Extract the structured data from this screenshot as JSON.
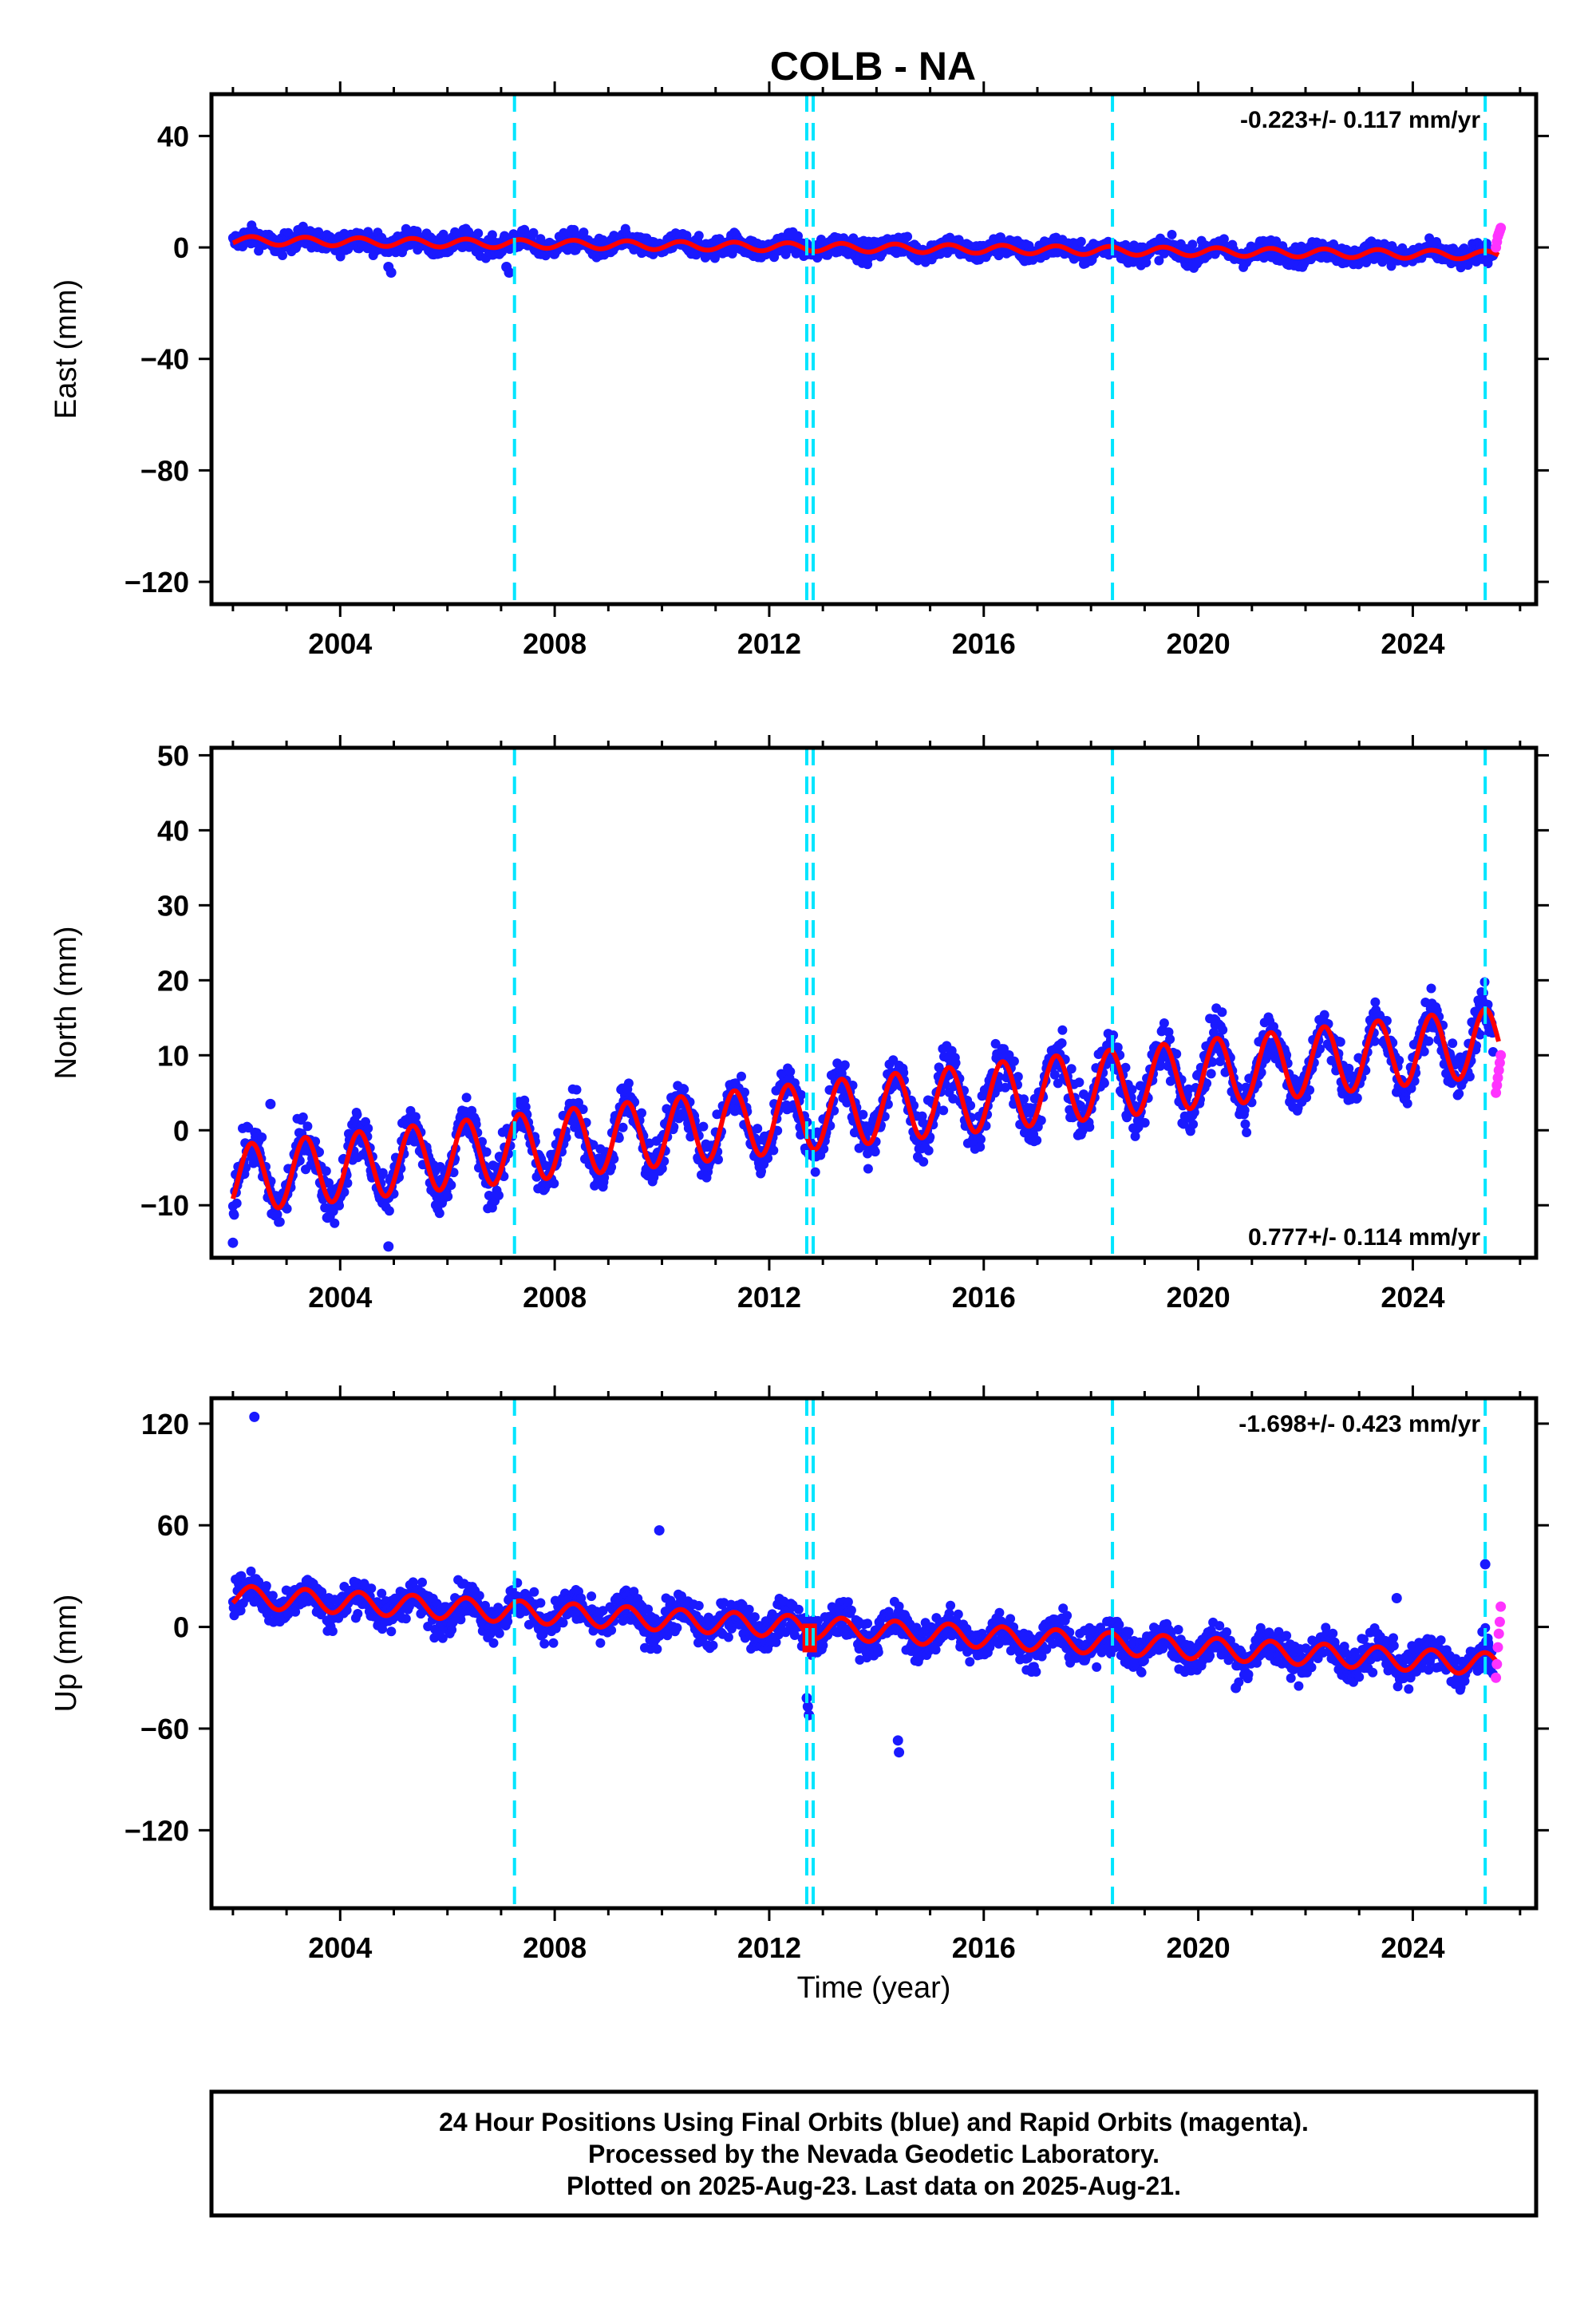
{
  "title": "COLB - NA",
  "xlabel": "Time (year)",
  "colors": {
    "final_orbits": "#1a1aff",
    "rapid_orbits": "#ff33ff",
    "model_fit": "#ff0000",
    "event_lines": "#00e5ff",
    "frame": "#000000"
  },
  "footer": {
    "line1": "24 Hour Positions Using Final Orbits (blue) and Rapid Orbits (magenta).",
    "line2": "Processed by the Nevada Geodetic Laboratory.",
    "line3": "Plotted on 2025-Aug-23. Last data on 2025-Aug-21."
  },
  "chart_data": [
    {
      "type": "scatter",
      "component": "East",
      "ylabel": "East (mm)",
      "rate_label": "-0.223+/- 0.117 mm/yr",
      "rate_label_position": "top-right",
      "xlim": [
        2001.6,
        2026.3
      ],
      "ylim": [
        -128,
        55
      ],
      "xticks": [
        2004,
        2008,
        2012,
        2016,
        2020,
        2024
      ],
      "yticks": [
        40,
        0,
        -40,
        -80,
        -120
      ],
      "event_lines_x": [
        2007.25,
        2012.7,
        2012.82,
        2018.4,
        2025.35
      ],
      "series": [
        {
          "label": "Final Orbits (blue)",
          "x_start": 2002.0,
          "x_end": 2025.5,
          "start_value": 2.5,
          "rate": -0.223,
          "annual_amplitude": 1.5,
          "scatter": 1.8
        },
        {
          "label": "Rapid Orbits (magenta)",
          "x_start": 2025.55,
          "x_end": 2025.64,
          "values": [
            0,
            2,
            4,
            5,
            6,
            7
          ]
        }
      ],
      "outliers": [
        [
          2004.9,
          -7
        ],
        [
          2004.95,
          -9
        ],
        [
          2007.1,
          -7
        ],
        [
          2007.15,
          -9
        ]
      ]
    },
    {
      "type": "scatter",
      "component": "North",
      "ylabel": "North (mm)",
      "rate_label": "0.777+/- 0.114 mm/yr",
      "rate_label_position": "bottom-right",
      "xlim": [
        2001.6,
        2026.3
      ],
      "ylim": [
        -17,
        51
      ],
      "xticks": [
        2004,
        2008,
        2012,
        2016,
        2020,
        2024
      ],
      "yticks": [
        50,
        40,
        30,
        20,
        10,
        0,
        -10
      ],
      "event_lines_x": [
        2007.25,
        2012.7,
        2012.82,
        2018.4,
        2025.35
      ],
      "series": [
        {
          "label": "Final Orbits (blue)",
          "x_start": 2002.0,
          "x_end": 2025.5,
          "start_value": -6.5,
          "rate": 0.777,
          "annual_amplitude": 4.5,
          "scatter": 1.6
        },
        {
          "label": "Rapid Orbits (magenta)",
          "x_start": 2025.55,
          "x_end": 2025.64,
          "values": [
            5,
            6,
            7,
            8,
            9,
            10
          ]
        }
      ],
      "outliers": [
        [
          2002.0,
          -15
        ],
        [
          2004.9,
          -15.5
        ],
        [
          2002.7,
          3.5
        ]
      ]
    },
    {
      "type": "scatter",
      "component": "Up",
      "ylabel": "Up (mm)",
      "rate_label": "-1.698+/- 0.423 mm/yr",
      "rate_label_position": "top-right",
      "xlim": [
        2001.6,
        2026.3
      ],
      "ylim": [
        -166,
        135
      ],
      "xticks": [
        2004,
        2008,
        2012,
        2016,
        2020,
        2024
      ],
      "yticks": [
        120,
        60,
        0,
        -60,
        -120
      ],
      "event_lines_x": [
        2007.25,
        2012.7,
        2012.82,
        2018.4,
        2025.35
      ],
      "series": [
        {
          "label": "Final Orbits (blue)",
          "x_start": 2002.0,
          "x_end": 2025.5,
          "start_value": 18,
          "rate": -1.698,
          "annual_amplitude": 6.5,
          "scatter": 5.5
        },
        {
          "label": "Rapid Orbits (magenta)",
          "x_start": 2025.55,
          "x_end": 2025.64,
          "values": [
            -30,
            -22,
            -12,
            -4,
            3,
            12
          ]
        }
      ],
      "outliers": [
        [
          2002.4,
          124
        ],
        [
          2009.95,
          57
        ],
        [
          2014.4,
          -67
        ],
        [
          2014.42,
          -74
        ],
        [
          2012.7,
          -42
        ],
        [
          2012.72,
          -47
        ],
        [
          2012.74,
          -52
        ],
        [
          2023.7,
          17
        ],
        [
          2020.7,
          -36
        ],
        [
          2025.35,
          37
        ]
      ]
    }
  ]
}
